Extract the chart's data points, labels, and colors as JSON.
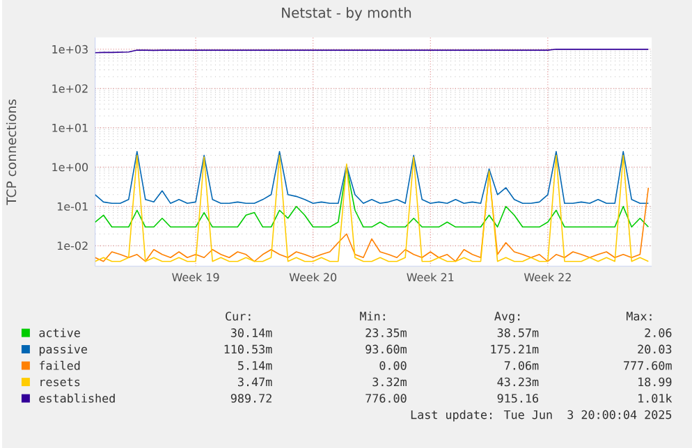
{
  "chart_data": {
    "type": "line",
    "title": "Netstat - by month",
    "ylabel": "TCP connections",
    "categories": [
      null,
      null,
      null,
      null,
      null,
      null,
      null,
      null,
      null,
      null,
      null,
      null,
      "Week 19",
      null,
      null,
      null,
      null,
      null,
      null,
      null,
      null,
      null,
      null,
      null,
      null,
      null,
      "Week 20",
      null,
      null,
      null,
      null,
      null,
      null,
      null,
      null,
      null,
      null,
      null,
      null,
      null,
      "Week 21",
      null,
      null,
      null,
      null,
      null,
      null,
      null,
      null,
      null,
      null,
      null,
      null,
      null,
      "Week 22",
      null,
      null,
      null,
      null,
      null,
      null,
      null,
      null,
      null,
      null,
      null,
      null
    ],
    "ylim": [
      0.003,
      2000
    ],
    "yticks": [
      {
        "value": 0.01,
        "label": "1e-02"
      },
      {
        "value": 0.1,
        "label": "1e-01"
      },
      {
        "value": 1,
        "label": "1e+00"
      },
      {
        "value": 10,
        "label": "1e+01"
      },
      {
        "value": 100,
        "label": "1e+02"
      },
      {
        "value": 1000,
        "label": "1e+03"
      }
    ],
    "log": "y",
    "grid": true,
    "legend": "bottom",
    "series": [
      {
        "name": "active",
        "color": "#00cc00",
        "values": [
          0.04,
          0.06,
          0.03,
          0.03,
          0.03,
          0.08,
          0.03,
          0.03,
          0.05,
          0.03,
          0.03,
          0.03,
          0.03,
          0.07,
          0.03,
          0.03,
          0.03,
          0.03,
          0.06,
          0.07,
          0.03,
          0.03,
          0.08,
          0.05,
          0.1,
          0.06,
          0.03,
          0.03,
          0.03,
          0.04,
          1.0,
          0.08,
          0.03,
          0.03,
          0.04,
          0.03,
          0.03,
          0.03,
          0.05,
          0.03,
          0.03,
          0.03,
          0.04,
          0.03,
          0.03,
          0.03,
          0.03,
          0.06,
          0.03,
          0.1,
          0.06,
          0.03,
          0.03,
          0.03,
          0.04,
          0.08,
          0.03,
          0.03,
          0.03,
          0.03,
          0.03,
          0.03,
          0.03,
          0.1,
          0.03,
          0.05,
          0.03
        ]
      },
      {
        "name": "passive",
        "color": "#0066b3",
        "values": [
          0.2,
          0.13,
          0.12,
          0.12,
          0.15,
          2.5,
          0.15,
          0.13,
          0.25,
          0.12,
          0.15,
          0.12,
          0.13,
          2.0,
          0.15,
          0.12,
          0.12,
          0.13,
          0.12,
          0.12,
          0.15,
          0.2,
          2.5,
          0.2,
          0.18,
          0.15,
          0.12,
          0.13,
          0.12,
          0.12,
          1.1,
          0.2,
          0.12,
          0.15,
          0.12,
          0.13,
          0.15,
          0.12,
          2.0,
          0.15,
          0.12,
          0.13,
          0.12,
          0.15,
          0.12,
          0.13,
          0.12,
          0.9,
          0.2,
          0.3,
          0.15,
          0.12,
          0.12,
          0.13,
          0.2,
          2.5,
          0.12,
          0.12,
          0.13,
          0.12,
          0.15,
          0.12,
          0.12,
          2.5,
          0.15,
          0.12,
          0.12
        ]
      },
      {
        "name": "failed",
        "color": "#ff8000",
        "values": [
          0.005,
          0.004,
          0.007,
          0.006,
          0.005,
          0.006,
          0.004,
          0.008,
          0.006,
          0.005,
          0.007,
          0.005,
          0.006,
          0.005,
          0.008,
          0.006,
          0.005,
          0.007,
          0.006,
          0.004,
          0.006,
          0.008,
          0.006,
          0.005,
          0.007,
          0.006,
          0.005,
          0.006,
          0.007,
          0.012,
          0.02,
          0.006,
          0.005,
          0.015,
          0.007,
          0.006,
          0.005,
          0.008,
          0.006,
          0.005,
          0.007,
          0.005,
          0.006,
          0.004,
          0.008,
          0.006,
          0.005,
          0.7,
          0.006,
          0.012,
          0.007,
          0.006,
          0.005,
          0.006,
          0.004,
          0.006,
          0.005,
          0.007,
          0.006,
          0.005,
          0.006,
          0.007,
          0.005,
          0.006,
          0.005,
          0.006,
          0.3
        ]
      },
      {
        "name": "resets",
        "color": "#ffcc00",
        "values": [
          0.004,
          0.005,
          0.004,
          0.004,
          0.005,
          2.0,
          0.004,
          0.005,
          0.004,
          0.004,
          0.005,
          0.004,
          0.004,
          1.8,
          0.004,
          0.005,
          0.004,
          0.004,
          0.005,
          0.004,
          0.004,
          0.005,
          2.0,
          0.004,
          0.005,
          0.004,
          0.004,
          0.005,
          0.004,
          0.004,
          1.2,
          0.005,
          0.004,
          0.004,
          0.005,
          0.004,
          0.004,
          0.005,
          1.8,
          0.004,
          0.004,
          0.005,
          0.004,
          0.004,
          0.005,
          0.004,
          0.004,
          0.8,
          0.004,
          0.005,
          0.004,
          0.004,
          0.005,
          0.004,
          0.004,
          2.0,
          0.004,
          0.004,
          0.004,
          0.005,
          0.004,
          0.005,
          0.004,
          2.0,
          0.004,
          0.005,
          0.004
        ]
      },
      {
        "name": "established",
        "color": "#330099",
        "values": [
          820,
          830,
          830,
          840,
          850,
          950,
          950,
          940,
          950,
          950,
          950,
          950,
          950,
          950,
          950,
          950,
          950,
          950,
          950,
          950,
          950,
          950,
          950,
          950,
          950,
          950,
          950,
          950,
          950,
          950,
          950,
          950,
          950,
          950,
          950,
          950,
          950,
          950,
          950,
          950,
          950,
          950,
          950,
          950,
          950,
          950,
          950,
          950,
          950,
          950,
          950,
          950,
          950,
          950,
          950,
          1000,
          1000,
          1000,
          1000,
          1000,
          1000,
          1000,
          1000,
          1000,
          1000,
          1000,
          1000
        ]
      }
    ],
    "annotations": [
      "Cur:",
      "Min:",
      "Avg:",
      "Max:",
      "30.14m",
      "23.35m",
      "38.57m",
      "2.06",
      "110.53m",
      "93.60m",
      "175.21m",
      "20.03",
      "5.14m",
      "0.00",
      "7.06m",
      "777.60m",
      "3.47m",
      "3.32m",
      "43.23m",
      "18.99",
      "989.72",
      "776.00",
      "915.16",
      "1.01k",
      "Last update: Tue Jun  3 20:00:04 2025"
    ]
  }
}
